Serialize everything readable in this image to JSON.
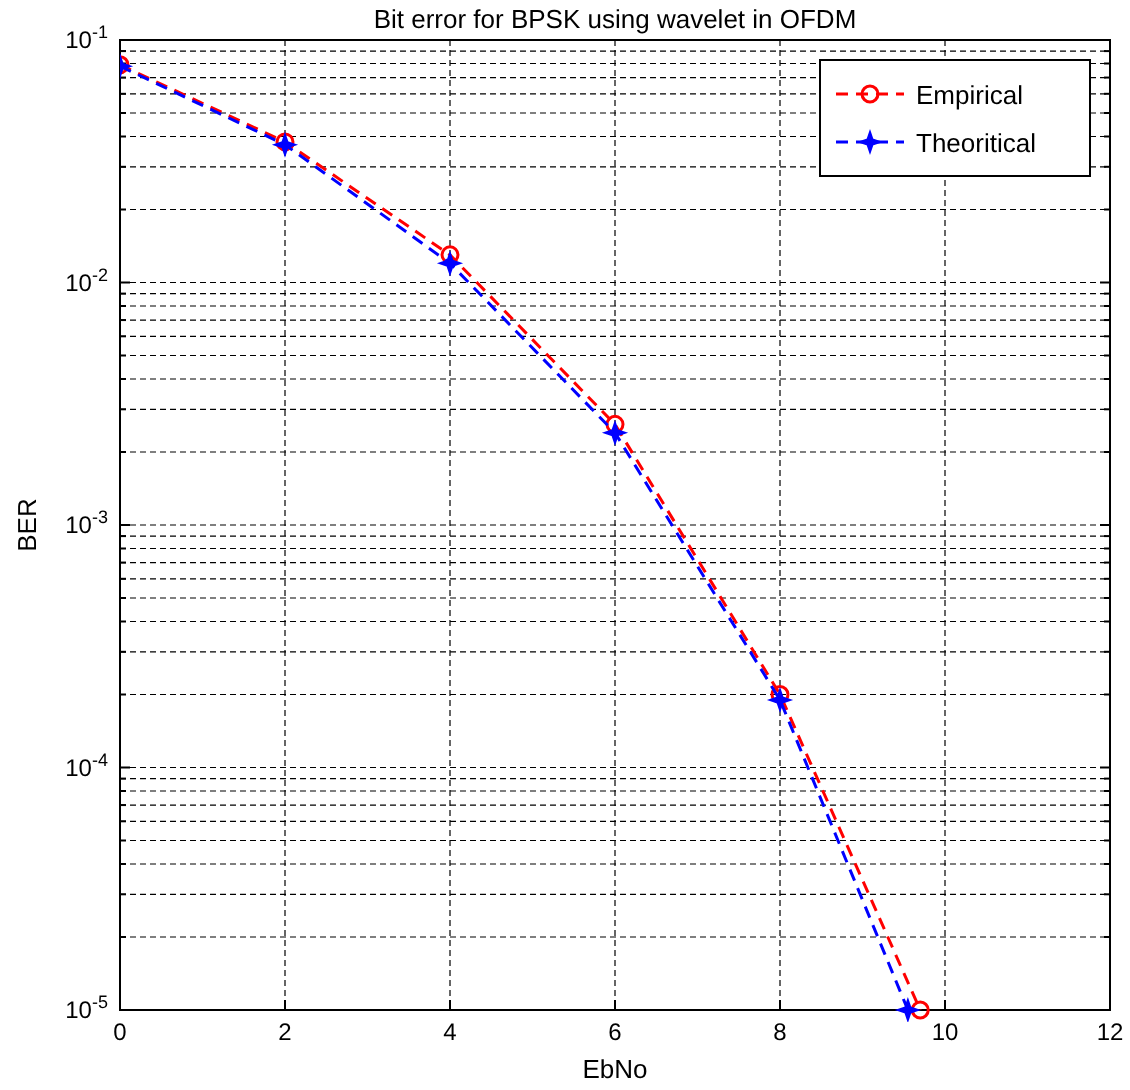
{
  "chart_data": {
    "type": "line",
    "title": "Bit error for BPSK using wavelet in OFDM",
    "xlabel": "EbNo",
    "ylabel": "BER",
    "log": "y",
    "grid": true,
    "legend": "top right",
    "line_style": "dashed",
    "xlim": [
      0,
      12
    ],
    "xticks": [
      0,
      2,
      4,
      6,
      8,
      10,
      12
    ],
    "ylim": [
      1e-05,
      0.1
    ],
    "yticks": [
      {
        "value": 1e-05,
        "label": "10$^{-5}$"
      },
      {
        "value": 2e-05,
        "label": null
      },
      {
        "value": 3e-05,
        "label": null
      },
      {
        "value": 4e-05,
        "label": null
      },
      {
        "value": 5e-05,
        "label": null
      },
      {
        "value": 6e-05,
        "label": null
      },
      {
        "value": 7e-05,
        "label": null
      },
      {
        "value": 8e-05,
        "label": null
      },
      {
        "value": 9e-05,
        "label": null
      },
      {
        "value": 0.0001,
        "label": "10$^{-4}$"
      },
      {
        "value": 0.0002,
        "label": null
      },
      {
        "value": 0.0003,
        "label": null
      },
      {
        "value": 0.0004,
        "label": null
      },
      {
        "value": 0.0005,
        "label": null
      },
      {
        "value": 0.0006,
        "label": null
      },
      {
        "value": 0.0007,
        "label": null
      },
      {
        "value": 0.0008,
        "label": null
      },
      {
        "value": 0.0009,
        "label": null
      },
      {
        "value": 0.001,
        "label": "10$^{-3}$"
      },
      {
        "value": 0.002,
        "label": null
      },
      {
        "value": 0.003,
        "label": null
      },
      {
        "value": 0.004,
        "label": null
      },
      {
        "value": 0.005,
        "label": null
      },
      {
        "value": 0.006,
        "label": null
      },
      {
        "value": 0.007,
        "label": null
      },
      {
        "value": 0.008,
        "label": null
      },
      {
        "value": 0.009,
        "label": null
      },
      {
        "value": 0.01,
        "label": "10$^{-2}$"
      },
      {
        "value": 0.02,
        "label": null
      },
      {
        "value": 0.03,
        "label": null
      },
      {
        "value": 0.04,
        "label": null
      },
      {
        "value": 0.05,
        "label": null
      },
      {
        "value": 0.06,
        "label": null
      },
      {
        "value": 0.07,
        "label": null
      },
      {
        "value": 0.08,
        "label": null
      },
      {
        "value": 0.09,
        "label": null
      },
      {
        "value": 0.1,
        "label": "10$^{-1}$"
      }
    ],
    "series": [
      {
        "name": "Empirical",
        "color": "#ff0000",
        "marker": "circle",
        "x": [
          0,
          2,
          4,
          6,
          8,
          9.7
        ],
        "values": [
          0.079,
          0.038,
          0.013,
          0.0026,
          0.0002,
          1e-05
        ]
      },
      {
        "name": "Theoritical",
        "color": "#0000ff",
        "marker": "star",
        "x": [
          0,
          2,
          4,
          6,
          8,
          9.55
        ],
        "values": [
          0.078,
          0.037,
          0.012,
          0.0024,
          0.00019,
          1e-05
        ]
      }
    ]
  }
}
